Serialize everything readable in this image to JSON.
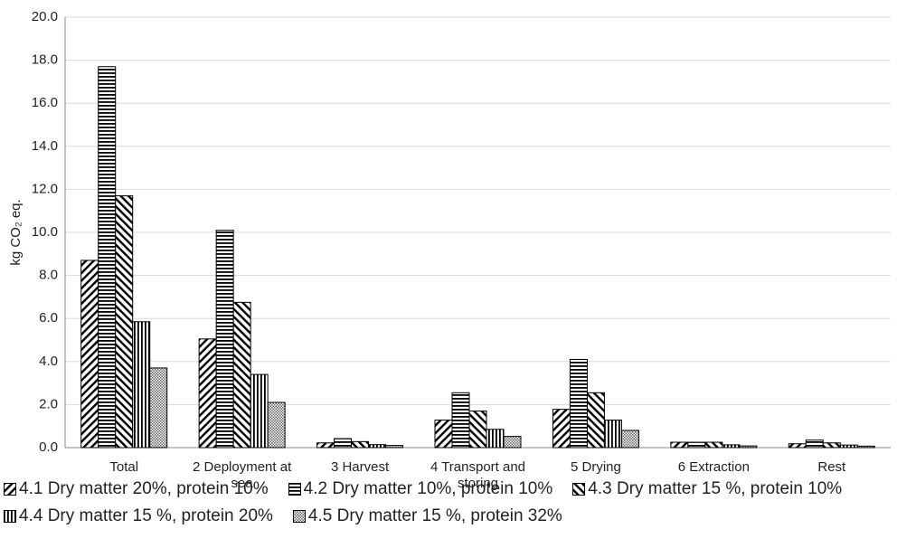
{
  "chart_data": {
    "type": "bar",
    "ylabel": "kg CO₂ eq.",
    "categories": [
      "Total",
      "2 Deployment at sea",
      "3 Harvest",
      "4 Transport and storing",
      "5 Drying",
      "6 Extraction",
      "Rest"
    ],
    "series": [
      {
        "name": "4.1 Dry matter 20%, protein 10%",
        "color": "#000000",
        "pattern": "diagonal-up",
        "values": [
          8.7,
          5.05,
          0.22,
          1.28,
          1.78,
          0.25,
          0.18
        ]
      },
      {
        "name": "4.2 Dry matter 10%, protein 10%",
        "color": "#000000",
        "pattern": "horizontal",
        "values": [
          17.7,
          10.1,
          0.42,
          2.55,
          4.1,
          0.25,
          0.35
        ]
      },
      {
        "name": "4.3 Dry matter 15 %, protein 10%",
        "color": "#000000",
        "pattern": "diagonal-down",
        "values": [
          11.7,
          6.75,
          0.28,
          1.7,
          2.55,
          0.25,
          0.22
        ]
      },
      {
        "name": "4.4 Dry matter 15 %, protein 20%",
        "color": "#000000",
        "pattern": "vertical",
        "values": [
          5.85,
          3.4,
          0.14,
          0.85,
          1.28,
          0.13,
          0.12
        ]
      },
      {
        "name": "4.5 Dry matter 15 %, protein 32%",
        "color": "#000000",
        "pattern": "crosshatch",
        "values": [
          3.7,
          2.1,
          0.1,
          0.52,
          0.8,
          0.08,
          0.07
        ]
      }
    ],
    "ylim": [
      0,
      20
    ],
    "yticks": [
      {
        "value": 0,
        "label": "0.0"
      },
      {
        "value": 2,
        "label": "2.0"
      },
      {
        "value": 4,
        "label": "4.0"
      },
      {
        "value": 6,
        "label": "6.0"
      },
      {
        "value": 8,
        "label": "8.0"
      },
      {
        "value": 10,
        "label": "10.0"
      },
      {
        "value": 12,
        "label": "12.0"
      },
      {
        "value": 14,
        "label": "14.0"
      },
      {
        "value": 16,
        "label": "16.0"
      },
      {
        "value": 18,
        "label": "18.0"
      },
      {
        "value": 20,
        "label": "20.0"
      }
    ],
    "grid": true
  }
}
